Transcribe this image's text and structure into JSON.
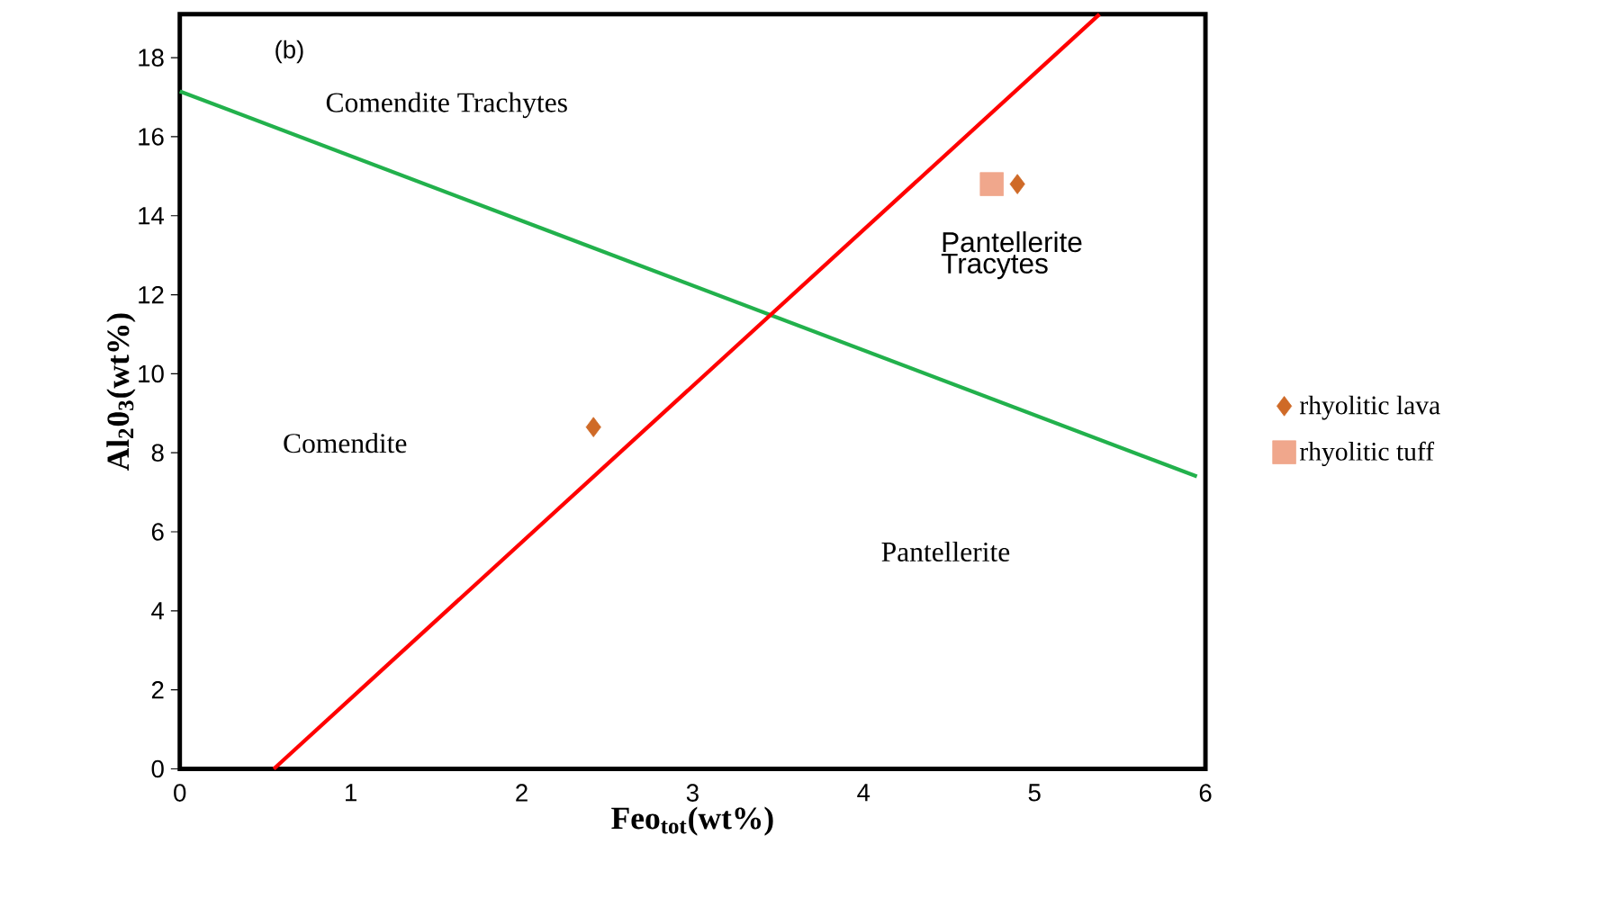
{
  "chart_data": {
    "type": "scatter",
    "xlabel": "Feo$_{tot}$(wt%)",
    "ylabel": "Al$_{2}$0$_{3}$(wt%)",
    "xlim": [
      0,
      6
    ],
    "ylim": [
      0,
      19.1
    ],
    "xticks": [
      0,
      1,
      2,
      3,
      4,
      5,
      6
    ],
    "yticks": [
      0,
      2,
      4,
      6,
      8,
      10,
      12,
      14,
      16,
      18
    ],
    "grid": false,
    "legend": "right",
    "annotations": [
      "(b)",
      "Comendite Trachytes",
      "Pantellerite Tracytes",
      "Comendite",
      "Pantellerite"
    ],
    "series": [
      {
        "type": "line",
        "color": "#22b14c",
        "x": [
          0,
          5.95
        ],
        "values": [
          17.15,
          7.4
        ],
        "marker": "none"
      },
      {
        "type": "line",
        "color": "#ff0000",
        "x": [
          0.55,
          5.38
        ],
        "values": [
          0,
          19.1
        ],
        "marker": "none"
      },
      {
        "type": "scatter",
        "name": "rhyolitic lava",
        "color": "#cf6a27",
        "x": [
          2.42,
          4.9
        ],
        "values": [
          8.65,
          14.8
        ],
        "marker": "diamond"
      },
      {
        "type": "scatter",
        "name": "rhyolitic tuff",
        "color": "#f0a78c",
        "x": [
          4.75
        ],
        "values": [
          14.8
        ],
        "marker": "square"
      }
    ]
  }
}
